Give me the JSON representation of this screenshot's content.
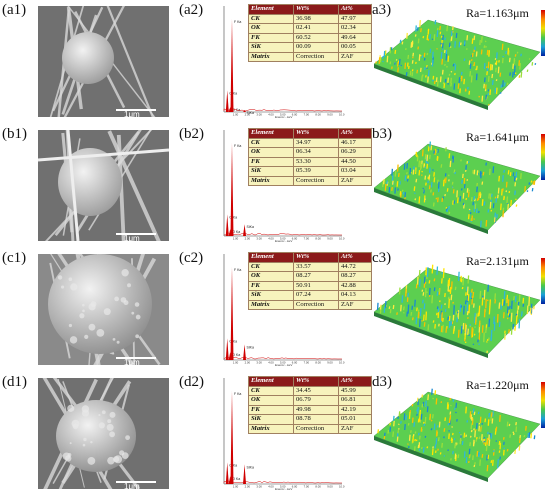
{
  "rows": [
    {
      "sem_label": "(a1)",
      "eds_label": "(a2)",
      "surf_label": "(a3)",
      "scale": "1μm",
      "ra": "Ra=1.163μm",
      "table": {
        "headers": [
          "Element",
          "Wt%",
          "At%"
        ],
        "rows": [
          [
            "CK",
            "36.98",
            "47.97"
          ],
          [
            "OK",
            "02.41",
            "02.34"
          ],
          [
            "FK",
            "60.52",
            "49.64"
          ],
          [
            "SiK",
            "00.09",
            "00.05"
          ],
          [
            "Matrix",
            "Correction",
            "ZAF"
          ]
        ]
      },
      "peaks": [
        {
          "label": "C Ka",
          "h": 0.22
        },
        {
          "label": "O Ka",
          "h": 0.05
        },
        {
          "label": "F Ka",
          "h": 0.95
        },
        {
          "label": "SiKa",
          "h": 0.02
        }
      ]
    },
    {
      "sem_label": "(b1)",
      "eds_label": "(b2)",
      "surf_label": "(b3)",
      "scale": "1μm",
      "ra": "Ra=1.641μm",
      "table": {
        "headers": [
          "Element",
          "Wt%",
          "At%"
        ],
        "rows": [
          [
            "CK",
            "34.97",
            "46.17"
          ],
          [
            "OK",
            "06.34",
            "06.29"
          ],
          [
            "FK",
            "53.30",
            "44.50"
          ],
          [
            "SiK",
            "05.39",
            "03.04"
          ],
          [
            "Matrix",
            "Correction",
            "ZAF"
          ]
        ]
      },
      "peaks": [
        {
          "label": "C Ka",
          "h": 0.22
        },
        {
          "label": "O Ka",
          "h": 0.07
        },
        {
          "label": "F Ka",
          "h": 0.95
        },
        {
          "label": "SiKa",
          "h": 0.12
        }
      ]
    },
    {
      "sem_label": "(c1)",
      "eds_label": "(c2)",
      "surf_label": "(c3)",
      "scale": "1μm",
      "ra": "Ra=2.131μm",
      "table": {
        "headers": [
          "Element",
          "Wt%",
          "At%"
        ],
        "rows": [
          [
            "CK",
            "33.57",
            "44.72"
          ],
          [
            "OK",
            "08.27",
            "08.27"
          ],
          [
            "FK",
            "50.91",
            "42.88"
          ],
          [
            "SiK",
            "07.24",
            "04.13"
          ],
          [
            "Matrix",
            "Correction",
            "ZAF"
          ]
        ]
      },
      "peaks": [
        {
          "label": "C Ka",
          "h": 0.22
        },
        {
          "label": "O Ka",
          "h": 0.08
        },
        {
          "label": "F Ka",
          "h": 0.95
        },
        {
          "label": "SiKa",
          "h": 0.16
        }
      ]
    },
    {
      "sem_label": "(d1)",
      "eds_label": "(d2)",
      "surf_label": "(d3)",
      "scale": "1μm",
      "ra": "Ra=1.220μm",
      "table": {
        "headers": [
          "Element",
          "Wt%",
          "At%"
        ],
        "rows": [
          [
            "CK",
            "34.45",
            "45.99"
          ],
          [
            "OK",
            "06.79",
            "06.81"
          ],
          [
            "FK",
            "49.98",
            "42.19"
          ],
          [
            "SiK",
            "08.78",
            "05.01"
          ],
          [
            "Matrix",
            "Correction",
            "ZAF"
          ]
        ]
      },
      "peaks": [
        {
          "label": "C Ka",
          "h": 0.22
        },
        {
          "label": "O Ka",
          "h": 0.08
        },
        {
          "label": "F Ka",
          "h": 0.95
        },
        {
          "label": "SiKa",
          "h": 0.2
        }
      ]
    }
  ],
  "eds_axis": {
    "xlabel": "Energy - keV",
    "ticks": [
      "1.00",
      "2.00",
      "3.00",
      "4.00",
      "5.00",
      "6.00",
      "7.00",
      "8.00",
      "9.00",
      "10.0"
    ]
  },
  "colors": {
    "table_header": "#8b1a1a",
    "table_body": "#f7f3bd",
    "spectrum": "#d00000"
  }
}
